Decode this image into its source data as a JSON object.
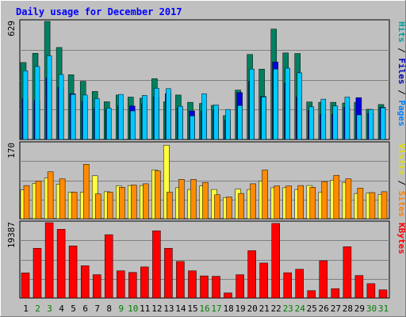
{
  "chart_data": {
    "type": "bar",
    "title": "Daily usage for December 2017",
    "categories": [
      "1",
      "2",
      "3",
      "4",
      "5",
      "6",
      "7",
      "8",
      "9",
      "10",
      "11",
      "12",
      "13",
      "14",
      "15",
      "16",
      "17",
      "18",
      "19",
      "20",
      "21",
      "22",
      "23",
      "24",
      "25",
      "26",
      "27",
      "28",
      "29",
      "30",
      "31"
    ],
    "weekend_days": [
      "2",
      "3",
      "9",
      "10",
      "16",
      "17",
      "23",
      "24",
      "30",
      "31"
    ],
    "panels": [
      {
        "id": "hits",
        "ymax_label": "629",
        "ylim": [
          0,
          629
        ],
        "side_labels": [
          {
            "text": "Hits",
            "color": "#00a0a0"
          },
          {
            "text": "Files",
            "color": "#0000c0"
          },
          {
            "text": "Pages",
            "color": "#0080ff"
          }
        ],
        "series": [
          {
            "name": "Hits",
            "color": "#008060",
            "values": [
              410,
              459,
              629,
              490,
              345,
              310,
              256,
              201,
              237,
              226,
              220,
              324,
              201,
              237,
              198,
              192,
              182,
              127,
              263,
              453,
              375,
              588,
              461,
              458,
              200,
              198,
              198,
              194,
              198,
              161,
              186
            ]
          },
          {
            "name": "Files",
            "color": "#0000e0",
            "values": [
              217,
              208,
              329,
              277,
              243,
              204,
              165,
              160,
              180,
              178,
              190,
              228,
              245,
              168,
              152,
              152,
              158,
              104,
              250,
              310,
              229,
              413,
              300,
              227,
              154,
              134,
              135,
              172,
              223,
              139,
              171
            ]
          },
          {
            "name": "Pages",
            "color": "#00c8ff",
            "values": [
              366,
              389,
              446,
              346,
              240,
              237,
              218,
              167,
              240,
              152,
              235,
              273,
              271,
              177,
              126,
              244,
              184,
              160,
              181,
              375,
              227,
              375,
              380,
              355,
              174,
              215,
              179,
              226,
              131,
              160,
              169
            ]
          }
        ]
      },
      {
        "id": "visits",
        "ymax_label": "170",
        "ylim": [
          0,
          170
        ],
        "side_labels": [
          {
            "text": "Visits",
            "color": "#e0e000"
          },
          {
            "text": "Sites",
            "color": "#ff8000"
          }
        ],
        "series": [
          {
            "name": "Visits",
            "color": "#ffff40",
            "values": [
              65,
              80,
              92,
              78,
              60,
              60,
              97,
              61,
              74,
              75,
              75,
              110,
              166,
              70,
              66,
              74,
              66,
              48,
              67,
              66,
              85,
              70,
              70,
              66,
              75,
              60,
              87,
              82,
              57,
              58,
              55
            ]
          },
          {
            "name": "Sites",
            "color": "#ff8c00",
            "values": [
              75,
              85,
              106,
              90,
              60,
              123,
              56,
              60,
              71,
              76,
              79,
              108,
              60,
              89,
              89,
              82,
              54,
              49,
              57,
              79,
              110,
              74,
              74,
              75,
              71,
              84,
              98,
              90,
              69,
              59,
              61
            ]
          }
        ]
      },
      {
        "id": "kbytes",
        "ymax_label": "19387",
        "ylim": [
          0,
          19387
        ],
        "side_labels": [
          {
            "text": "KBytes",
            "color": "#ff0000"
          }
        ],
        "series": [
          {
            "name": "KBytes",
            "color": "#ff0000",
            "values": [
              6450,
              12800,
              19387,
              17700,
              13400,
              8300,
              6000,
              16300,
              7000,
              6600,
              8000,
              17300,
              12800,
              9400,
              7000,
              5700,
              5600,
              1300,
              6000,
              12200,
              9000,
              19200,
              6500,
              7400,
              1900,
              9600,
              2400,
              13200,
              5800,
              3700,
              2100
            ]
          }
        ]
      }
    ]
  }
}
